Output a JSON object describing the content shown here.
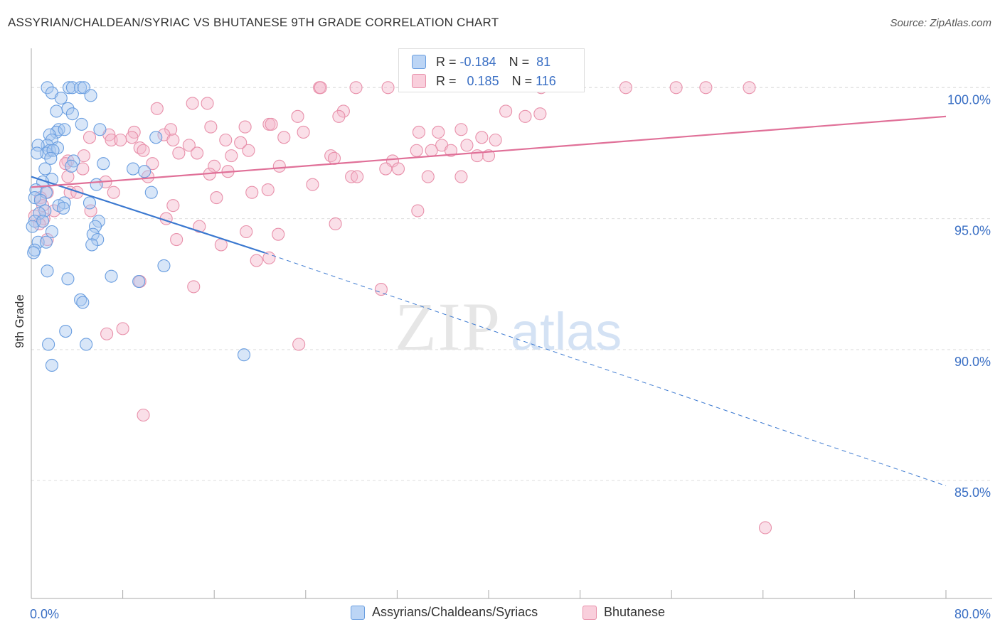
{
  "title": "ASSYRIAN/CHALDEAN/SYRIAC VS BHUTANESE 9TH GRADE CORRELATION CHART",
  "source": "Source: ZipAtlas.com",
  "watermark": {
    "zip": "ZIP",
    "atlas": "atlas"
  },
  "colors": {
    "blue_fill": "#a8c8f0",
    "blue_stroke": "#6a9ee0",
    "blue_line": "#3a78d0",
    "pink_fill": "#f5b8cc",
    "pink_stroke": "#e890aa",
    "pink_line": "#e07098",
    "axis_text": "#3a6fc4",
    "grid": "#dddddd"
  },
  "stats": {
    "blue": {
      "r_label": "R =",
      "r_value": "-0.184",
      "n_label": "N =",
      "n_value": "81"
    },
    "pink": {
      "r_label": "R =",
      "r_value": "0.185",
      "n_label": "N =",
      "n_value": "116"
    }
  },
  "legend": {
    "blue": "Assyrians/Chaldeans/Syriacs",
    "pink": "Bhutanese"
  },
  "chart_data": {
    "type": "scatter",
    "ylabel": "9th Grade",
    "xlabel": "",
    "xlim": [
      0,
      80
    ],
    "ylim": [
      80.5,
      101.5
    ],
    "x_tick_labels": [
      {
        "value": 0,
        "label": "0.0%"
      },
      {
        "value": 80,
        "label": "80.0%"
      }
    ],
    "y_tick_labels": [
      {
        "value": 100,
        "label": "100.0%"
      },
      {
        "value": 95,
        "label": "95.0%"
      },
      {
        "value": 90,
        "label": "90.0%"
      },
      {
        "value": 85,
        "label": "85.0%"
      }
    ],
    "x_minor_ticks": [
      0,
      8,
      16,
      24,
      32,
      40,
      48,
      56,
      64,
      72,
      80
    ],
    "series": [
      {
        "name": "Assyrians/Chaldeans/Syriacs",
        "color": "blue",
        "trend": {
          "x0": 0,
          "y0": 96.6,
          "x1": 20.4,
          "y1": 93.7,
          "dash_to_x": 80,
          "dash_to_y": 84.8
        },
        "points": [
          [
            1.4,
            100.0
          ],
          [
            3.3,
            100.0
          ],
          [
            3.6,
            100.0
          ],
          [
            4.3,
            100.0
          ],
          [
            4.6,
            100.0
          ],
          [
            1.8,
            99.8
          ],
          [
            5.2,
            99.7
          ],
          [
            2.6,
            99.6
          ],
          [
            2.2,
            99.1
          ],
          [
            3.2,
            99.2
          ],
          [
            3.6,
            99.0
          ],
          [
            4.4,
            98.6
          ],
          [
            2.4,
            98.4
          ],
          [
            2.2,
            98.3
          ],
          [
            2.9,
            98.4
          ],
          [
            1.6,
            98.2
          ],
          [
            6.0,
            98.4
          ],
          [
            1.8,
            98.0
          ],
          [
            10.9,
            98.1
          ],
          [
            1.4,
            97.8
          ],
          [
            1.6,
            97.6
          ],
          [
            2.3,
            97.7
          ],
          [
            0.6,
            97.8
          ],
          [
            1.3,
            97.5
          ],
          [
            1.9,
            97.6
          ],
          [
            0.5,
            97.5
          ],
          [
            1.7,
            97.3
          ],
          [
            3.7,
            97.2
          ],
          [
            3.5,
            97.0
          ],
          [
            1.2,
            96.9
          ],
          [
            6.3,
            97.1
          ],
          [
            8.9,
            96.9
          ],
          [
            9.9,
            96.8
          ],
          [
            1.8,
            96.5
          ],
          [
            1.0,
            96.4
          ],
          [
            5.7,
            96.3
          ],
          [
            0.4,
            96.1
          ],
          [
            1.3,
            96.0
          ],
          [
            10.5,
            96.0
          ],
          [
            0.3,
            95.8
          ],
          [
            0.8,
            95.7
          ],
          [
            2.9,
            95.6
          ],
          [
            2.4,
            95.5
          ],
          [
            1.2,
            95.3
          ],
          [
            5.1,
            95.6
          ],
          [
            2.8,
            95.4
          ],
          [
            0.7,
            95.2
          ],
          [
            0.3,
            94.9
          ],
          [
            5.9,
            94.9
          ],
          [
            1.0,
            94.9
          ],
          [
            0.1,
            94.7
          ],
          [
            5.6,
            94.7
          ],
          [
            1.8,
            94.5
          ],
          [
            5.4,
            94.4
          ],
          [
            5.8,
            94.2
          ],
          [
            0.6,
            94.1
          ],
          [
            1.3,
            94.1
          ],
          [
            5.3,
            94.0
          ],
          [
            0.3,
            93.8
          ],
          [
            0.2,
            93.7
          ],
          [
            11.6,
            93.2
          ],
          [
            1.4,
            93.0
          ],
          [
            3.2,
            92.7
          ],
          [
            7.0,
            92.8
          ],
          [
            9.4,
            92.6
          ],
          [
            4.3,
            91.9
          ],
          [
            4.5,
            91.8
          ],
          [
            3.0,
            90.7
          ],
          [
            1.5,
            90.2
          ],
          [
            4.8,
            90.2
          ],
          [
            1.8,
            89.4
          ],
          [
            18.6,
            89.8
          ]
        ]
      },
      {
        "name": "Bhutanese",
        "color": "pink",
        "trend": {
          "x0": 0,
          "y0": 96.2,
          "x1": 80,
          "y1": 98.9
        },
        "points": [
          [
            25.2,
            100.0
          ],
          [
            25.3,
            100.0
          ],
          [
            28.4,
            100.0
          ],
          [
            31.2,
            100.0
          ],
          [
            44.6,
            100.0
          ],
          [
            52.0,
            100.0
          ],
          [
            59.0,
            100.0
          ],
          [
            14.1,
            99.4
          ],
          [
            15.4,
            99.4
          ],
          [
            27.3,
            99.1
          ],
          [
            11.0,
            99.2
          ],
          [
            23.3,
            98.9
          ],
          [
            26.9,
            98.9
          ],
          [
            44.5,
            99.0
          ],
          [
            41.5,
            99.1
          ],
          [
            43.2,
            98.9
          ],
          [
            20.8,
            98.6
          ],
          [
            21.0,
            98.6
          ],
          [
            15.7,
            98.5
          ],
          [
            12.2,
            98.4
          ],
          [
            18.7,
            98.5
          ],
          [
            23.8,
            98.3
          ],
          [
            9.0,
            98.3
          ],
          [
            11.6,
            98.2
          ],
          [
            37.6,
            98.4
          ],
          [
            33.9,
            98.3
          ],
          [
            35.6,
            98.3
          ],
          [
            6.8,
            98.2
          ],
          [
            7.0,
            98.0
          ],
          [
            17.0,
            98.0
          ],
          [
            22.1,
            98.1
          ],
          [
            8.8,
            98.1
          ],
          [
            7.8,
            98.0
          ],
          [
            12.4,
            98.0
          ],
          [
            5.1,
            98.1
          ],
          [
            18.3,
            97.9
          ],
          [
            9.5,
            97.7
          ],
          [
            13.8,
            97.8
          ],
          [
            35.9,
            97.8
          ],
          [
            35.0,
            97.6
          ],
          [
            33.7,
            97.6
          ],
          [
            36.7,
            97.6
          ],
          [
            38.1,
            97.8
          ],
          [
            39.0,
            97.4
          ],
          [
            40.6,
            98.0
          ],
          [
            39.4,
            98.1
          ],
          [
            40.0,
            97.4
          ],
          [
            9.8,
            97.6
          ],
          [
            14.5,
            97.5
          ],
          [
            19.0,
            97.6
          ],
          [
            12.9,
            97.5
          ],
          [
            26.2,
            97.4
          ],
          [
            26.5,
            97.3
          ],
          [
            4.6,
            97.4
          ],
          [
            17.5,
            97.4
          ],
          [
            3.2,
            97.2
          ],
          [
            3.0,
            97.1
          ],
          [
            10.6,
            97.1
          ],
          [
            16.0,
            97.0
          ],
          [
            21.7,
            97.0
          ],
          [
            4.5,
            96.9
          ],
          [
            31.6,
            97.2
          ],
          [
            32.1,
            96.9
          ],
          [
            31.0,
            96.9
          ],
          [
            15.6,
            96.7
          ],
          [
            17.2,
            96.8
          ],
          [
            10.2,
            96.6
          ],
          [
            3.2,
            96.6
          ],
          [
            28.0,
            96.6
          ],
          [
            28.5,
            96.6
          ],
          [
            34.7,
            96.6
          ],
          [
            37.6,
            96.6
          ],
          [
            6.5,
            96.4
          ],
          [
            24.6,
            96.3
          ],
          [
            20.7,
            96.1
          ],
          [
            3.4,
            96.0
          ],
          [
            7.2,
            96.0
          ],
          [
            19.3,
            96.0
          ],
          [
            1.4,
            96.0
          ],
          [
            4.0,
            96.0
          ],
          [
            16.2,
            95.8
          ],
          [
            0.8,
            95.8
          ],
          [
            12.4,
            95.5
          ],
          [
            1.0,
            95.5
          ],
          [
            5.2,
            95.3
          ],
          [
            2.0,
            95.3
          ],
          [
            33.8,
            95.3
          ],
          [
            0.3,
            95.1
          ],
          [
            11.8,
            95.0
          ],
          [
            1.1,
            95.0
          ],
          [
            0.7,
            94.8
          ],
          [
            26.6,
            94.8
          ],
          [
            14.7,
            94.7
          ],
          [
            18.8,
            94.5
          ],
          [
            21.6,
            94.4
          ],
          [
            1.4,
            94.2
          ],
          [
            12.7,
            94.2
          ],
          [
            16.6,
            94.0
          ],
          [
            19.7,
            93.4
          ],
          [
            20.8,
            93.5
          ],
          [
            9.5,
            92.6
          ],
          [
            14.2,
            92.4
          ],
          [
            30.6,
            92.3
          ],
          [
            8.0,
            90.8
          ],
          [
            6.6,
            90.6
          ],
          [
            23.4,
            90.2
          ],
          [
            9.8,
            87.5
          ],
          [
            64.2,
            83.2
          ],
          [
            56.4,
            100.0
          ],
          [
            62.8,
            100.0
          ]
        ]
      }
    ]
  }
}
